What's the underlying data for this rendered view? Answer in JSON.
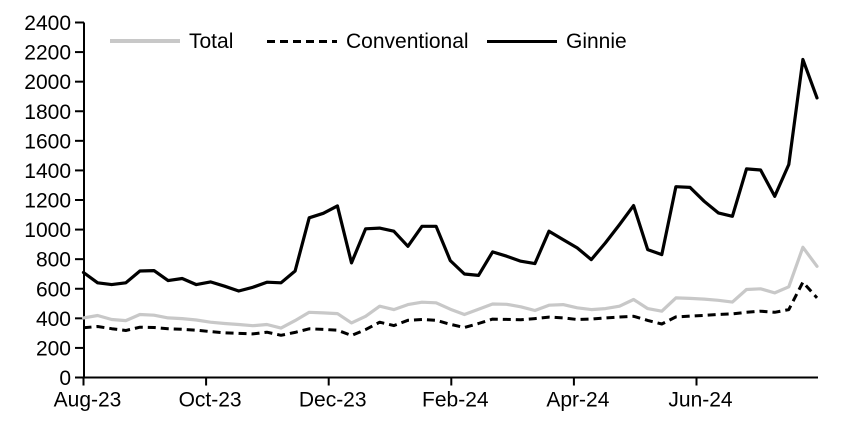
{
  "chart_data": {
    "type": "line",
    "title": "",
    "grid": false,
    "legend": {
      "position": "top-inside",
      "entries": [
        "Total",
        "Conventional",
        "Ginnie"
      ]
    },
    "x_axis": {
      "tick_labels": [
        "Aug-23",
        "Oct-23",
        "Dec-23",
        "Feb-24",
        "Apr-24",
        "Jun-24"
      ]
    },
    "y_axis": {
      "min": 0,
      "max": 2400,
      "step": 200,
      "ticks": [
        0,
        200,
        400,
        600,
        800,
        1000,
        1200,
        1400,
        1600,
        1800,
        2000,
        2200,
        2400
      ]
    },
    "series": [
      {
        "name": "Total",
        "color": "#c8c8c8",
        "line_style": "solid",
        "values": [
          403,
          419,
          392,
          385,
          426,
          421,
          403,
          398,
          389,
          374,
          365,
          358,
          350,
          358,
          334,
          385,
          441,
          437,
          432,
          369,
          414,
          482,
          459,
          493,
          509,
          505,
          462,
          426,
          462,
          497,
          495,
          478,
          453,
          489,
          493,
          471,
          459,
          466,
          482,
          527,
          466,
          448,
          538,
          535,
          530,
          522,
          510,
          595,
          600,
          572,
          613,
          880,
          752
        ]
      },
      {
        "name": "Conventional",
        "color": "#000000",
        "line_style": "dashed",
        "values": [
          336,
          345,
          330,
          318,
          340,
          338,
          330,
          326,
          320,
          310,
          302,
          298,
          295,
          306,
          285,
          305,
          329,
          325,
          320,
          284,
          324,
          374,
          351,
          387,
          392,
          387,
          360,
          338,
          365,
          395,
          393,
          390,
          398,
          408,
          403,
          392,
          395,
          403,
          409,
          414,
          386,
          362,
          410,
          415,
          420,
          426,
          430,
          441,
          448,
          441,
          459,
          645,
          538
        ]
      },
      {
        "name": "Ginnie",
        "color": "#000000",
        "line_style": "solid",
        "values": [
          710,
          640,
          628,
          640,
          720,
          723,
          655,
          669,
          628,
          646,
          617,
          585,
          610,
          644,
          640,
          720,
          1080,
          1110,
          1160,
          775,
          1005,
          1010,
          989,
          887,
          1022,
          1022,
          790,
          700,
          690,
          849,
          820,
          786,
          770,
          989,
          932,
          876,
          797,
          910,
          1034,
          1162,
          865,
          831,
          1290,
          1285,
          1191,
          1113,
          1090,
          1410,
          1403,
          1225,
          1440,
          2150,
          1890
        ]
      }
    ]
  }
}
